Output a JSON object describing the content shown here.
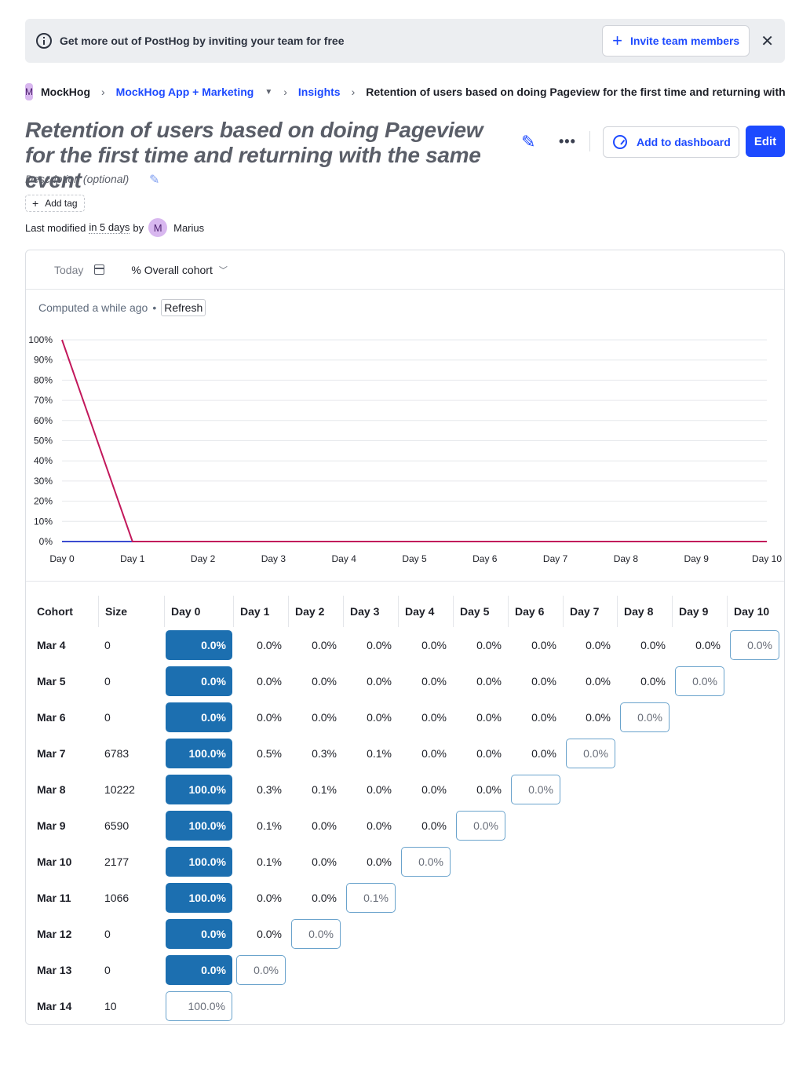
{
  "banner": {
    "text": "Get more out of PostHog by inviting your team for free",
    "invite_label": "Invite team members"
  },
  "breadcrumb": {
    "org_initial": "M",
    "org": "MockHog",
    "project": "MockHog App + Marketing",
    "section": "Insights",
    "current": "Retention of users based on doing Pageview for the first time and returning with the same event"
  },
  "insight": {
    "title": "Retention of users based on doing Pageview for the first time and returning with the same event",
    "description_placeholder": "Description (optional)",
    "add_tag_label": "Add tag",
    "add_to_dashboard_label": "Add to dashboard",
    "edit_label": "Edit",
    "last_modified_prefix": "Last modified",
    "last_modified_when": "in 5 days",
    "last_modified_by": "by",
    "author_initial": "M",
    "author": "Marius"
  },
  "filters": {
    "date": "Today",
    "cohort_mode": "% Overall cohort"
  },
  "status": {
    "computed": "Computed a while ago",
    "separator": "•",
    "refresh_label": "Refresh"
  },
  "chart_data": {
    "type": "line",
    "x": [
      "Day 0",
      "Day 1",
      "Day 2",
      "Day 3",
      "Day 4",
      "Day 5",
      "Day 6",
      "Day 7",
      "Day 8",
      "Day 9",
      "Day 10"
    ],
    "y_ticks": [
      "0%",
      "10%",
      "20%",
      "30%",
      "40%",
      "50%",
      "60%",
      "70%",
      "80%",
      "90%",
      "100%"
    ],
    "ylim": [
      0,
      100
    ],
    "grid": true,
    "series": [
      {
        "values": [
          100,
          0,
          0,
          0,
          0,
          0,
          0,
          0,
          0,
          0,
          0
        ],
        "color": "#c2185b",
        "dashed_from": 10
      },
      {
        "values": [
          0,
          0,
          0,
          0,
          0,
          0,
          0,
          0,
          0,
          0,
          0
        ],
        "color": "#3b4bd0",
        "dashed_from": 9
      }
    ]
  },
  "table": {
    "headers": [
      "Cohort",
      "Size",
      "Day 0",
      "Day 1",
      "Day 2",
      "Day 3",
      "Day 4",
      "Day 5",
      "Day 6",
      "Day 7",
      "Day 8",
      "Day 9",
      "Day 10"
    ],
    "rows": [
      {
        "cohort": "Mar 4",
        "size": "0",
        "values": [
          "0.0%",
          "0.0%",
          "0.0%",
          "0.0%",
          "0.0%",
          "0.0%",
          "0.0%",
          "0.0%",
          "0.0%",
          "0.0%",
          "0.0%"
        ]
      },
      {
        "cohort": "Mar 5",
        "size": "0",
        "values": [
          "0.0%",
          "0.0%",
          "0.0%",
          "0.0%",
          "0.0%",
          "0.0%",
          "0.0%",
          "0.0%",
          "0.0%",
          "0.0%"
        ]
      },
      {
        "cohort": "Mar 6",
        "size": "0",
        "values": [
          "0.0%",
          "0.0%",
          "0.0%",
          "0.0%",
          "0.0%",
          "0.0%",
          "0.0%",
          "0.0%",
          "0.0%"
        ]
      },
      {
        "cohort": "Mar 7",
        "size": "6783",
        "values": [
          "100.0%",
          "0.5%",
          "0.3%",
          "0.1%",
          "0.0%",
          "0.0%",
          "0.0%",
          "0.0%"
        ]
      },
      {
        "cohort": "Mar 8",
        "size": "10222",
        "values": [
          "100.0%",
          "0.3%",
          "0.1%",
          "0.0%",
          "0.0%",
          "0.0%",
          "0.0%"
        ]
      },
      {
        "cohort": "Mar 9",
        "size": "6590",
        "values": [
          "100.0%",
          "0.1%",
          "0.0%",
          "0.0%",
          "0.0%",
          "0.0%"
        ]
      },
      {
        "cohort": "Mar 10",
        "size": "2177",
        "values": [
          "100.0%",
          "0.1%",
          "0.0%",
          "0.0%",
          "0.0%"
        ]
      },
      {
        "cohort": "Mar 11",
        "size": "1066",
        "values": [
          "100.0%",
          "0.0%",
          "0.0%",
          "0.1%"
        ]
      },
      {
        "cohort": "Mar 12",
        "size": "0",
        "values": [
          "0.0%",
          "0.0%",
          "0.0%"
        ]
      },
      {
        "cohort": "Mar 13",
        "size": "0",
        "values": [
          "0.0%",
          "0.0%"
        ]
      },
      {
        "cohort": "Mar 14",
        "size": "10",
        "values": [
          "100.0%"
        ]
      }
    ]
  },
  "colors": {
    "accent": "#1d4aff",
    "cohort_fill": "#1c6fb0",
    "cohort_outline": "#6aa3cc"
  }
}
